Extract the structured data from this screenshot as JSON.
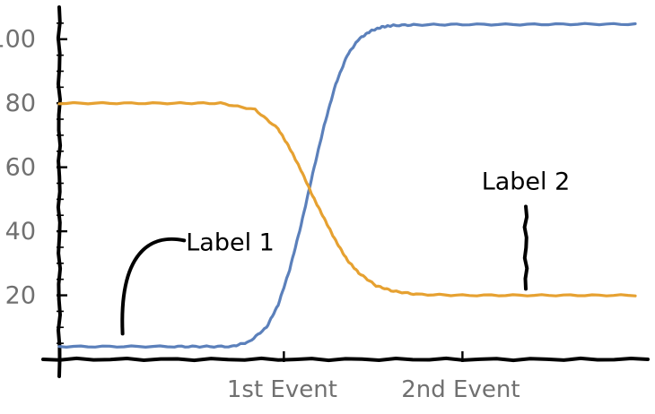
{
  "chart_data": {
    "type": "line",
    "xlabel": "",
    "ylabel": "",
    "xlim": [
      0,
      100
    ],
    "ylim": [
      0,
      110
    ],
    "yticks": [
      20,
      40,
      60,
      80,
      100
    ],
    "xticks": [
      {
        "x": 39,
        "label": "1st Event"
      },
      {
        "x": 70,
        "label": "2nd Event"
      }
    ],
    "grid": false,
    "series": [
      {
        "color": "#5B80BB",
        "x": [
          0,
          10,
          20,
          25,
          30,
          33,
          36,
          38,
          40,
          42,
          44,
          46,
          48,
          50,
          52,
          54,
          56,
          58,
          62,
          70,
          80,
          90,
          100
        ],
        "y": [
          4,
          4,
          4,
          4,
          4,
          5.5,
          10,
          17,
          28,
          42,
          58,
          73,
          86,
          95,
          100,
          102.5,
          103.8,
          104.3,
          104.5,
          104.6,
          104.6,
          104.7,
          104.7
        ]
      },
      {
        "color": "#E6A131",
        "x": [
          0,
          10,
          20,
          28,
          34,
          38,
          40,
          42,
          44,
          46,
          48,
          50,
          52,
          55,
          58,
          62,
          70,
          80,
          90,
          100
        ],
        "y": [
          80,
          80,
          80,
          80,
          78,
          72,
          66,
          59,
          51,
          44,
          37,
          31,
          27,
          23,
          21.3,
          20.3,
          20,
          20,
          20,
          20
        ]
      }
    ],
    "annotations": [
      {
        "text": "Label 1",
        "x": 22,
        "y": 36,
        "pointer_to": [
          11,
          8
        ]
      },
      {
        "text": "Label 2",
        "x": 81,
        "y": 55,
        "pointer_to": [
          81,
          22
        ]
      }
    ]
  }
}
